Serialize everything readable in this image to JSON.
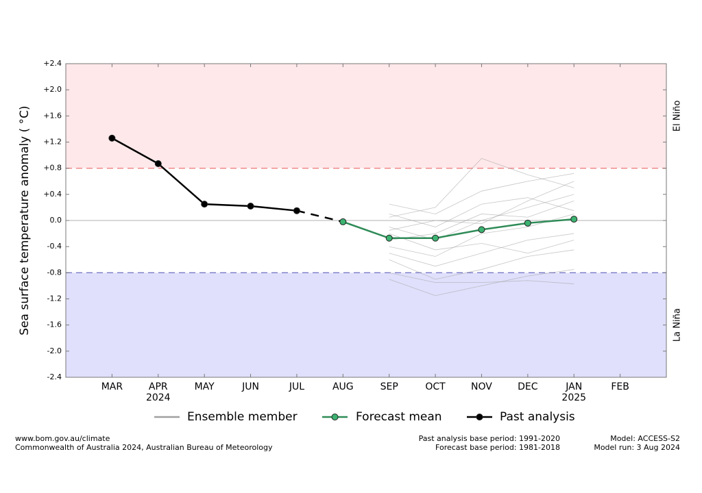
{
  "chart_data": {
    "type": "line",
    "ylabel": "Sea surface temperature anomaly ( °C)",
    "categories": [
      "MAR",
      "APR",
      "MAY",
      "JUN",
      "JUL",
      "AUG",
      "SEP",
      "OCT",
      "NOV",
      "DEC",
      "JAN",
      "FEB"
    ],
    "x_sublabels": [
      null,
      "2024",
      null,
      null,
      null,
      null,
      null,
      null,
      null,
      null,
      "2025",
      null
    ],
    "ylim": [
      -2.4,
      2.4
    ],
    "yticks": [
      {
        "value": -2.4,
        "label": "-2.4"
      },
      {
        "value": -2.0,
        "label": "-2.0"
      },
      {
        "value": -1.6,
        "label": "-1.6"
      },
      {
        "value": -1.2,
        "label": "-1.2"
      },
      {
        "value": -0.8,
        "label": "-0.8"
      },
      {
        "value": -0.4,
        "label": "-0.4"
      },
      {
        "value": 0.0,
        "label": "0.0"
      },
      {
        "value": 0.4,
        "label": "+0.4"
      },
      {
        "value": 0.8,
        "label": "+0.8"
      },
      {
        "value": 1.2,
        "label": "+1.2"
      },
      {
        "value": 1.6,
        "label": "+1.6"
      },
      {
        "value": 2.0,
        "label": "+2.0"
      },
      {
        "value": 2.4,
        "label": "+2.4"
      }
    ],
    "reference_line": 0,
    "thresholds": [
      {
        "label": "El Niño",
        "value": 0.8,
        "color": "#f08080",
        "fill": "#ffe8ea",
        "side": "above"
      },
      {
        "label": "La Niña",
        "value": -0.8,
        "color": "#7878c8",
        "fill": "#e0e0fc",
        "side": "below"
      }
    ],
    "ensemble": {
      "name": "Ensemble member",
      "color": "#a0a0a0",
      "members": [
        [
          null,
          null,
          null,
          null,
          null,
          null,
          0.25,
          0.1,
          0.45,
          0.6,
          0.72,
          null
        ],
        [
          null,
          null,
          null,
          null,
          null,
          null,
          -0.1,
          -0.3,
          0.0,
          0.2,
          0.4,
          null
        ],
        [
          null,
          null,
          null,
          null,
          null,
          null,
          -0.5,
          -0.7,
          -0.5,
          -0.3,
          -0.2,
          null
        ],
        [
          null,
          null,
          null,
          null,
          null,
          null,
          -0.3,
          -0.2,
          0.1,
          0.05,
          0.3,
          null
        ],
        [
          null,
          null,
          null,
          null,
          null,
          null,
          -0.9,
          -1.15,
          -1.0,
          -0.85,
          -0.75,
          null
        ],
        [
          null,
          null,
          null,
          null,
          null,
          null,
          0.05,
          0.2,
          0.95,
          0.7,
          0.5,
          null
        ],
        [
          null,
          null,
          null,
          null,
          null,
          null,
          -0.4,
          -0.55,
          -0.2,
          -0.1,
          0.1,
          null
        ],
        [
          null,
          null,
          null,
          null,
          null,
          null,
          -0.2,
          -0.45,
          -0.35,
          -0.5,
          -0.3,
          null
        ],
        [
          null,
          null,
          null,
          null,
          null,
          null,
          0.1,
          -0.1,
          0.25,
          0.35,
          0.15,
          null
        ],
        [
          null,
          null,
          null,
          null,
          null,
          null,
          -0.6,
          -0.9,
          -0.75,
          -0.55,
          -0.45,
          null
        ],
        [
          null,
          null,
          null,
          null,
          null,
          null,
          -0.8,
          -0.95,
          -0.95,
          -0.92,
          -0.97,
          null
        ],
        [
          null,
          null,
          null,
          null,
          null,
          null,
          -0.15,
          0.0,
          -0.05,
          0.3,
          0.6,
          null
        ]
      ]
    },
    "series": [
      {
        "name": "Forecast mean",
        "color": "#2e8b57",
        "marker_fill": "#3cb371",
        "values": [
          null,
          null,
          null,
          null,
          null,
          -0.02,
          -0.27,
          -0.27,
          -0.14,
          -0.04,
          0.02,
          null
        ]
      },
      {
        "name": "Past analysis",
        "color": "#000000",
        "marker_fill": "#000000",
        "values": [
          1.26,
          0.87,
          0.25,
          0.22,
          0.15,
          null,
          null,
          null,
          null,
          null,
          null,
          null
        ]
      }
    ]
  },
  "footer": {
    "left": [
      "www.bom.gov.au/climate",
      "Commonwealth of Australia 2024, Australian Bureau of Meteorology"
    ],
    "center": [
      "Past analysis base period: 1991-2020",
      "Forecast base period: 1981-2018"
    ],
    "right": [
      "Model: ACCESS-S2",
      "Model run: 3 Aug 2024"
    ]
  }
}
